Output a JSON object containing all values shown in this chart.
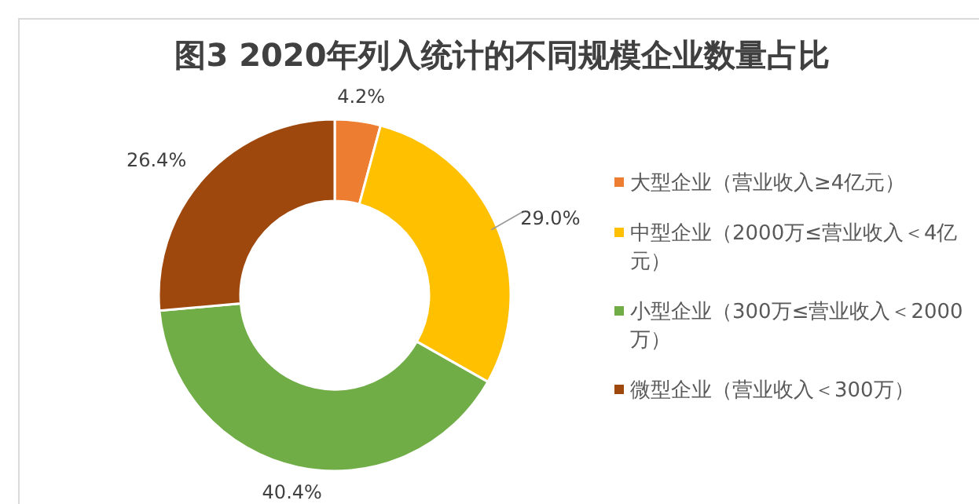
{
  "chart_data": {
    "type": "donut",
    "title": "图3 2020年列入统计的不同规模企业数量占比",
    "categories": [
      "大型企业（营业收入≥4亿元）",
      "中型企业（2000万≤营业收入＜4亿元）",
      "小型企业（300万≤营业收入＜2000万）",
      "微型企业（营业收入＜300万）"
    ],
    "values": [
      4.2,
      29.0,
      40.4,
      26.4
    ],
    "value_labels": [
      "4.2%",
      "29.0%",
      "40.4%",
      "26.4%"
    ],
    "colors": [
      "#ed7d31",
      "#ffc000",
      "#70ad47",
      "#9e480e"
    ],
    "legend": "right"
  }
}
